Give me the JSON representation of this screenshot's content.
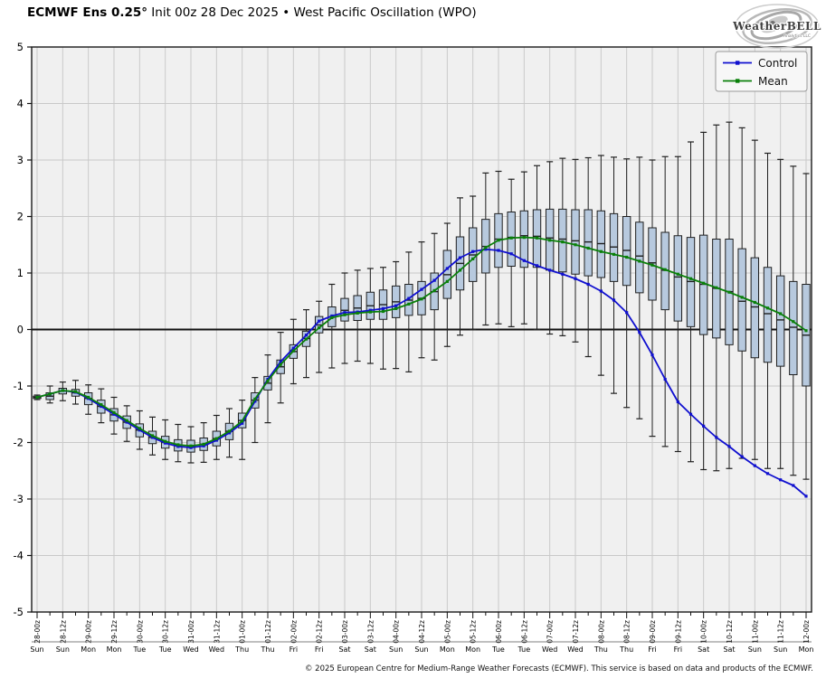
{
  "header": {
    "title_bold": "ECMWF Ens 0.25°",
    "title_rest": " Init 00z 28 Dec 2025 • West Pacific Oscillation (WPO)"
  },
  "logo": {
    "name": "WeatherBELL",
    "sub": "Analytics LLC"
  },
  "legend": {
    "items": [
      {
        "label": "Control",
        "color": "#1010cf"
      },
      {
        "label": "Mean",
        "color": "#0a800a"
      }
    ]
  },
  "footer": {
    "copyright": "© 2025 European Centre for Medium-Range Weather Forecasts (ECMWF). This service is based on data and products of the ECMWF."
  },
  "chart_data": {
    "type": "box-whisker-timeseries",
    "title": "ECMWF Ens 0.25° Init 00z 28 Dec 2025 • West Pacific Oscillation (WPO)",
    "xlabel": "",
    "ylabel": "",
    "ylim": [
      -5,
      5
    ],
    "yticks": [
      5,
      4,
      3,
      2,
      1,
      0,
      -1,
      -2,
      -3,
      -4,
      -5
    ],
    "grid": true,
    "legend_position": "top-right",
    "x_step_hours": 6,
    "n_points": 61,
    "xticks": [
      {
        "t": "28-00z",
        "d": "Sun"
      },
      {
        "t": "28-12z",
        "d": "Sun"
      },
      {
        "t": "29-00z",
        "d": "Mon"
      },
      {
        "t": "29-12z",
        "d": "Mon"
      },
      {
        "t": "30-00z",
        "d": "Tue"
      },
      {
        "t": "30-12z",
        "d": "Tue"
      },
      {
        "t": "31-00z",
        "d": "Wed"
      },
      {
        "t": "31-12z",
        "d": "Wed"
      },
      {
        "t": "01-00z",
        "d": "Thu"
      },
      {
        "t": "01-12z",
        "d": "Thu"
      },
      {
        "t": "02-00z",
        "d": "Fri"
      },
      {
        "t": "02-12z",
        "d": "Fri"
      },
      {
        "t": "03-00z",
        "d": "Sat"
      },
      {
        "t": "03-12z",
        "d": "Sat"
      },
      {
        "t": "04-00z",
        "d": "Sun"
      },
      {
        "t": "04-12z",
        "d": "Sun"
      },
      {
        "t": "05-00z",
        "d": "Mon"
      },
      {
        "t": "05-12z",
        "d": "Mon"
      },
      {
        "t": "06-00z",
        "d": "Tue"
      },
      {
        "t": "06-12z",
        "d": "Tue"
      },
      {
        "t": "07-00z",
        "d": "Wed"
      },
      {
        "t": "07-12z",
        "d": "Wed"
      },
      {
        "t": "08-00z",
        "d": "Thu"
      },
      {
        "t": "08-12z",
        "d": "Thu"
      },
      {
        "t": "09-00z",
        "d": "Fri"
      },
      {
        "t": "09-12z",
        "d": "Fri"
      },
      {
        "t": "10-00z",
        "d": "Sat"
      },
      {
        "t": "10-12z",
        "d": "Sat"
      },
      {
        "t": "11-00z",
        "d": "Sun"
      },
      {
        "t": "11-12z",
        "d": "Sun"
      },
      {
        "t": "12-00z",
        "d": "Mon"
      }
    ],
    "series": {
      "control": [
        -1.2,
        -1.14,
        -1.08,
        -1.11,
        -1.22,
        -1.36,
        -1.5,
        -1.64,
        -1.78,
        -1.91,
        -2.01,
        -2.07,
        -2.09,
        -2.06,
        -1.96,
        -1.83,
        -1.66,
        -1.27,
        -0.88,
        -0.57,
        -0.33,
        -0.1,
        0.15,
        0.24,
        0.3,
        0.31,
        0.34,
        0.37,
        0.42,
        0.55,
        0.71,
        0.87,
        1.08,
        1.27,
        1.38,
        1.42,
        1.4,
        1.34,
        1.22,
        1.13,
        1.05,
        0.98,
        0.9,
        0.8,
        0.68,
        0.52,
        0.3,
        -0.05,
        -0.45,
        -0.88,
        -1.28,
        -1.5,
        -1.71,
        -1.91,
        -2.07,
        -2.25,
        -2.41,
        -2.55,
        -2.66,
        -2.76,
        -2.95
      ],
      "mean": [
        -1.2,
        -1.14,
        -1.08,
        -1.1,
        -1.2,
        -1.33,
        -1.47,
        -1.61,
        -1.75,
        -1.88,
        -1.98,
        -2.04,
        -2.06,
        -2.03,
        -1.93,
        -1.8,
        -1.62,
        -1.23,
        -0.91,
        -0.62,
        -0.38,
        -0.17,
        0.03,
        0.21,
        0.26,
        0.29,
        0.31,
        0.32,
        0.37,
        0.45,
        0.54,
        0.69,
        0.85,
        1.05,
        1.25,
        1.45,
        1.58,
        1.62,
        1.63,
        1.62,
        1.58,
        1.55,
        1.5,
        1.44,
        1.38,
        1.33,
        1.28,
        1.21,
        1.14,
        1.06,
        0.98,
        0.9,
        0.82,
        0.74,
        0.66,
        0.57,
        0.48,
        0.38,
        0.28,
        0.14,
        -0.02
      ]
    },
    "boxes": {
      "whisker_low": [
        -1.24,
        -1.3,
        -1.26,
        -1.32,
        -1.5,
        -1.65,
        -1.85,
        -1.98,
        -2.12,
        -2.22,
        -2.3,
        -2.34,
        -2.36,
        -2.35,
        -2.3,
        -2.26,
        -2.3,
        -2.0,
        -1.65,
        -1.3,
        -0.96,
        -0.85,
        -0.76,
        -0.68,
        -0.6,
        -0.56,
        -0.6,
        -0.7,
        -0.69,
        -0.75,
        -0.5,
        -0.54,
        -0.3,
        -0.1,
        0.0,
        0.08,
        0.1,
        0.05,
        0.1,
        0.0,
        -0.08,
        -0.11,
        -0.22,
        -0.48,
        -0.81,
        -1.13,
        -1.38,
        -1.58,
        -1.89,
        -2.07,
        -2.16,
        -2.34,
        -2.48,
        -2.5,
        -2.46,
        -2.28,
        -2.3,
        -2.46,
        -2.46,
        -2.58,
        -2.65
      ],
      "box_low": [
        -1.22,
        -1.24,
        -1.14,
        -1.18,
        -1.33,
        -1.48,
        -1.62,
        -1.75,
        -1.9,
        -2.02,
        -2.1,
        -2.15,
        -2.17,
        -2.14,
        -2.06,
        -1.95,
        -1.74,
        -1.39,
        -1.07,
        -0.78,
        -0.51,
        -0.3,
        -0.06,
        0.05,
        0.15,
        0.16,
        0.18,
        0.18,
        0.21,
        0.25,
        0.26,
        0.35,
        0.55,
        0.7,
        0.85,
        1.0,
        1.1,
        1.12,
        1.1,
        1.1,
        1.05,
        1.02,
        0.98,
        0.95,
        0.92,
        0.85,
        0.78,
        0.65,
        0.52,
        0.35,
        0.15,
        0.05,
        -0.09,
        -0.15,
        -0.27,
        -0.38,
        -0.5,
        -0.58,
        -0.65,
        -0.8,
        -1.0
      ],
      "median": [
        -1.2,
        -1.18,
        -1.09,
        -1.12,
        -1.22,
        -1.36,
        -1.51,
        -1.64,
        -1.78,
        -1.91,
        -2.0,
        -2.05,
        -2.07,
        -2.03,
        -1.93,
        -1.8,
        -1.61,
        -1.25,
        -0.95,
        -0.66,
        -0.39,
        -0.16,
        0.08,
        0.22,
        0.34,
        0.38,
        0.42,
        0.44,
        0.49,
        0.52,
        0.55,
        0.67,
        0.97,
        1.17,
        1.32,
        1.47,
        1.6,
        1.63,
        1.66,
        1.65,
        1.62,
        1.6,
        1.57,
        1.55,
        1.52,
        1.46,
        1.4,
        1.3,
        1.18,
        1.05,
        0.93,
        0.85,
        0.8,
        0.73,
        0.67,
        0.5,
        0.4,
        0.28,
        0.17,
        0.04,
        -0.1
      ],
      "box_high": [
        -1.18,
        -1.12,
        -1.04,
        -1.06,
        -1.12,
        -1.25,
        -1.4,
        -1.53,
        -1.67,
        -1.8,
        -1.89,
        -1.95,
        -1.96,
        -1.92,
        -1.8,
        -1.66,
        -1.48,
        -1.12,
        -0.83,
        -0.54,
        -0.27,
        -0.03,
        0.23,
        0.4,
        0.55,
        0.6,
        0.66,
        0.7,
        0.77,
        0.8,
        0.85,
        1.0,
        1.4,
        1.64,
        1.8,
        1.95,
        2.05,
        2.08,
        2.1,
        2.12,
        2.13,
        2.13,
        2.12,
        2.12,
        2.1,
        2.05,
        2.0,
        1.9,
        1.8,
        1.72,
        1.66,
        1.63,
        1.67,
        1.6,
        1.6,
        1.43,
        1.27,
        1.1,
        0.95,
        0.85,
        0.8
      ],
      "whisker_high": [
        -1.16,
        -1.0,
        -0.93,
        -0.9,
        -0.98,
        -1.05,
        -1.2,
        -1.35,
        -1.44,
        -1.55,
        -1.6,
        -1.68,
        -1.72,
        -1.65,
        -1.52,
        -1.4,
        -1.25,
        -0.85,
        -0.45,
        -0.05,
        0.18,
        0.35,
        0.5,
        0.8,
        1.0,
        1.05,
        1.08,
        1.1,
        1.2,
        1.37,
        1.55,
        1.7,
        1.88,
        2.33,
        2.36,
        2.77,
        2.8,
        2.66,
        2.79,
        2.9,
        2.97,
        3.03,
        3.01,
        3.04,
        3.08,
        3.05,
        3.02,
        3.05,
        3.0,
        3.06,
        3.06,
        3.32,
        3.49,
        3.62,
        3.67,
        3.57,
        3.35,
        3.12,
        3.01,
        2.89,
        2.76
      ]
    },
    "colors": {
      "plot_bg": "#f0f0f0",
      "grid": "#c9c9c9",
      "frame": "#1a1a1a",
      "zero_line": "#111111",
      "box_fill": "#b7c9de",
      "box_edge": "#1f1f1f",
      "whisker": "#1f1f1f",
      "control": "#1010cf",
      "mean": "#0a800a"
    }
  }
}
